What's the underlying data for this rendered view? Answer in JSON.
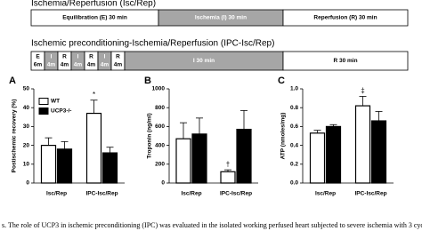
{
  "protocols": [
    {
      "title": "Ischemia/Reperfusion (Isc/Rep)",
      "steps": [
        {
          "label": "Equilibration (E) 30 min"
        },
        {
          "label": "Ischemia (I) 30 min"
        },
        {
          "label": "Reperfusion (R) 30 min"
        }
      ]
    },
    {
      "title": "Ischemic preconditioning-Ischemia/Reperfusion (IPC-Isc/Rep)",
      "steps": [
        {
          "label": "E",
          "duration": "6m"
        },
        {
          "label": "I",
          "duration": "4m"
        },
        {
          "label": "R",
          "duration": "4m"
        },
        {
          "label": "I",
          "duration": "4m"
        },
        {
          "label": "R",
          "duration": "4m"
        },
        {
          "label": "I",
          "duration": "4m"
        },
        {
          "label": "R",
          "duration": "4m"
        },
        {
          "label": "I 30 min"
        },
        {
          "label": "R 30 min"
        }
      ]
    }
  ],
  "chart_data": [
    {
      "type": "bar",
      "panel": "A",
      "y_label": "Postischemic recovery (%)",
      "categories": [
        "Isc/Rep",
        "IPC-Isc/Rep"
      ],
      "series": [
        {
          "name": "WT",
          "color": "#ffffff",
          "values": [
            20,
            37
          ],
          "errors": [
            4,
            7
          ]
        },
        {
          "name": "UCP3-/-",
          "color": "#000000",
          "values": [
            18,
            16
          ],
          "errors": [
            4,
            3
          ]
        }
      ],
      "ylim": [
        0,
        50
      ],
      "yticks": [
        0,
        10,
        20,
        30,
        40,
        50
      ],
      "annotation": "*",
      "legend": "upper left"
    },
    {
      "type": "bar",
      "panel": "B",
      "y_label": "Troponin (ng/ml)",
      "categories": [
        "Isc/Rep",
        "IPC-Isc/Rep"
      ],
      "series": [
        {
          "name": "WT",
          "color": "#ffffff",
          "values": [
            470,
            120
          ],
          "errors": [
            170,
            20
          ]
        },
        {
          "name": "UCP3-/-",
          "color": "#000000",
          "values": [
            520,
            570
          ],
          "errors": [
            170,
            200
          ]
        }
      ],
      "ylim": [
        0,
        1000
      ],
      "yticks": [
        0,
        200,
        400,
        600,
        800,
        1000
      ],
      "annotation": "†"
    },
    {
      "type": "bar",
      "panel": "C",
      "y_label": "ATP (nmoles/mg)",
      "categories": [
        "Isc/Rep",
        "IPC-Isc/Rep"
      ],
      "series": [
        {
          "name": "WT",
          "color": "#ffffff",
          "values": [
            0.53,
            0.82
          ],
          "errors": [
            0.03,
            0.1
          ]
        },
        {
          "name": "UCP3-/-",
          "color": "#000000",
          "values": [
            0.6,
            0.66
          ],
          "errors": [
            0.02,
            0.1
          ]
        }
      ],
      "ylim": [
        0,
        1.0
      ],
      "yticks": [
        {
          "value": 0,
          "label": "0.0"
        },
        {
          "value": 0.2,
          "label": "0.2"
        },
        {
          "value": 0.4,
          "label": "0.4"
        },
        {
          "value": 0.6,
          "label": "0.6"
        },
        {
          "value": 0.8,
          "label": "0.8"
        },
        {
          "value": 1.0,
          "label": "1.0"
        }
      ],
      "annotation": "‡"
    }
  ],
  "caption": "s. The role of UCP3 in ischemic preconditioning (IPC) was evaluated in the isolated working perfused heart subjected to severe ischemia with 3 cyc"
}
